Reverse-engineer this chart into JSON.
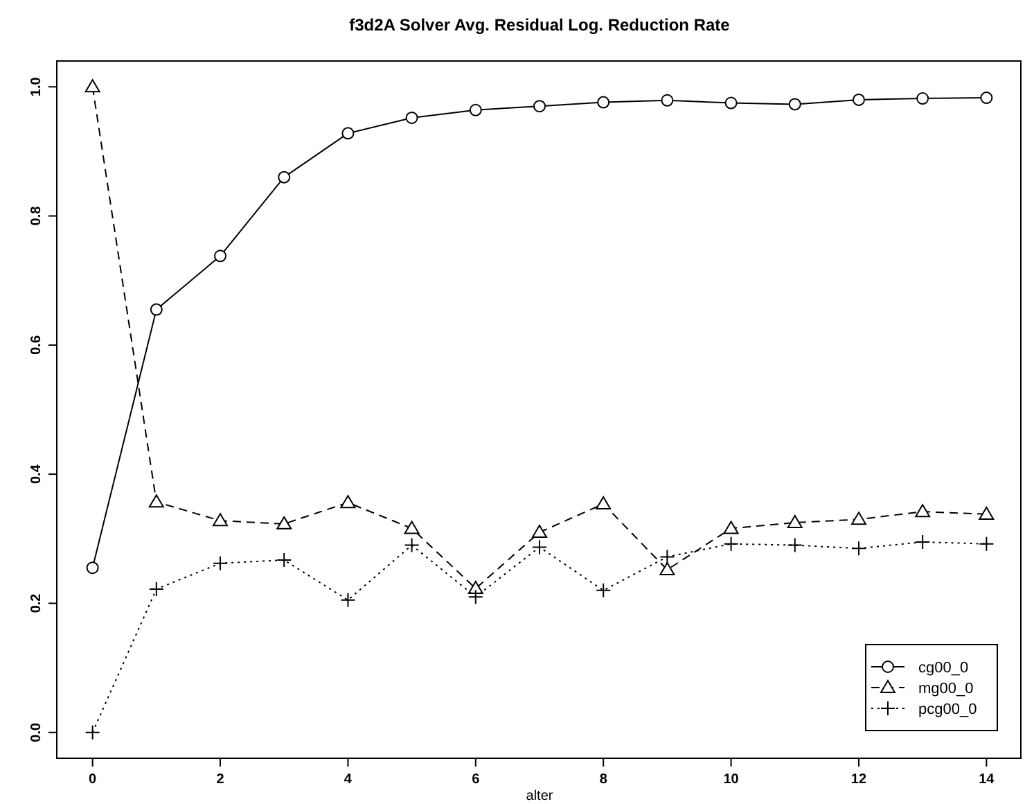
{
  "chart_data": {
    "type": "line",
    "title": "f3d2A Solver Avg. Residual Log. Reduction Rate",
    "xlabel": "alter",
    "x": [
      0,
      1,
      2,
      3,
      4,
      5,
      6,
      7,
      8,
      9,
      10,
      11,
      12,
      13,
      14
    ],
    "xlim": [
      -0.56,
      14.56
    ],
    "xticks": [
      0,
      2,
      4,
      6,
      8,
      10,
      12,
      14
    ],
    "ylim": [
      -0.04,
      1.04
    ],
    "yticks": [
      {
        "value": 0,
        "label": "0.0"
      },
      {
        "value": 0.2,
        "label": "0.2"
      },
      {
        "value": 0.4,
        "label": "0.4"
      },
      {
        "value": 0.6,
        "label": "0.6"
      },
      {
        "value": 0.8,
        "label": "0.8"
      },
      {
        "value": 1,
        "label": "1.0"
      }
    ],
    "grid": false,
    "legend": "bottom right",
    "series": [
      {
        "name": "cg00_0",
        "color": "#000000",
        "marker": "circle",
        "line_style": "solid",
        "values": [
          0.255,
          0.655,
          0.738,
          0.86,
          0.928,
          0.952,
          0.964,
          0.97,
          0.976,
          0.979,
          0.975,
          0.973,
          0.98,
          0.982,
          0.983
        ]
      },
      {
        "name": "mg00_0",
        "color": "#000000",
        "marker": "triangle",
        "line_style": "dashed",
        "values": [
          1.0,
          0.357,
          0.328,
          0.323,
          0.356,
          0.316,
          0.223,
          0.31,
          0.354,
          0.252,
          0.316,
          0.325,
          0.33,
          0.342,
          0.338
        ]
      },
      {
        "name": "pcg00_0",
        "color": "#000000",
        "marker": "cross",
        "line_style": "dotted",
        "values": [
          0,
          0.222,
          0.262,
          0.267,
          0.205,
          0.29,
          0.21,
          0.287,
          0.22,
          0.272,
          0.292,
          0.29,
          0.285,
          0.295,
          0.292
        ]
      }
    ]
  }
}
